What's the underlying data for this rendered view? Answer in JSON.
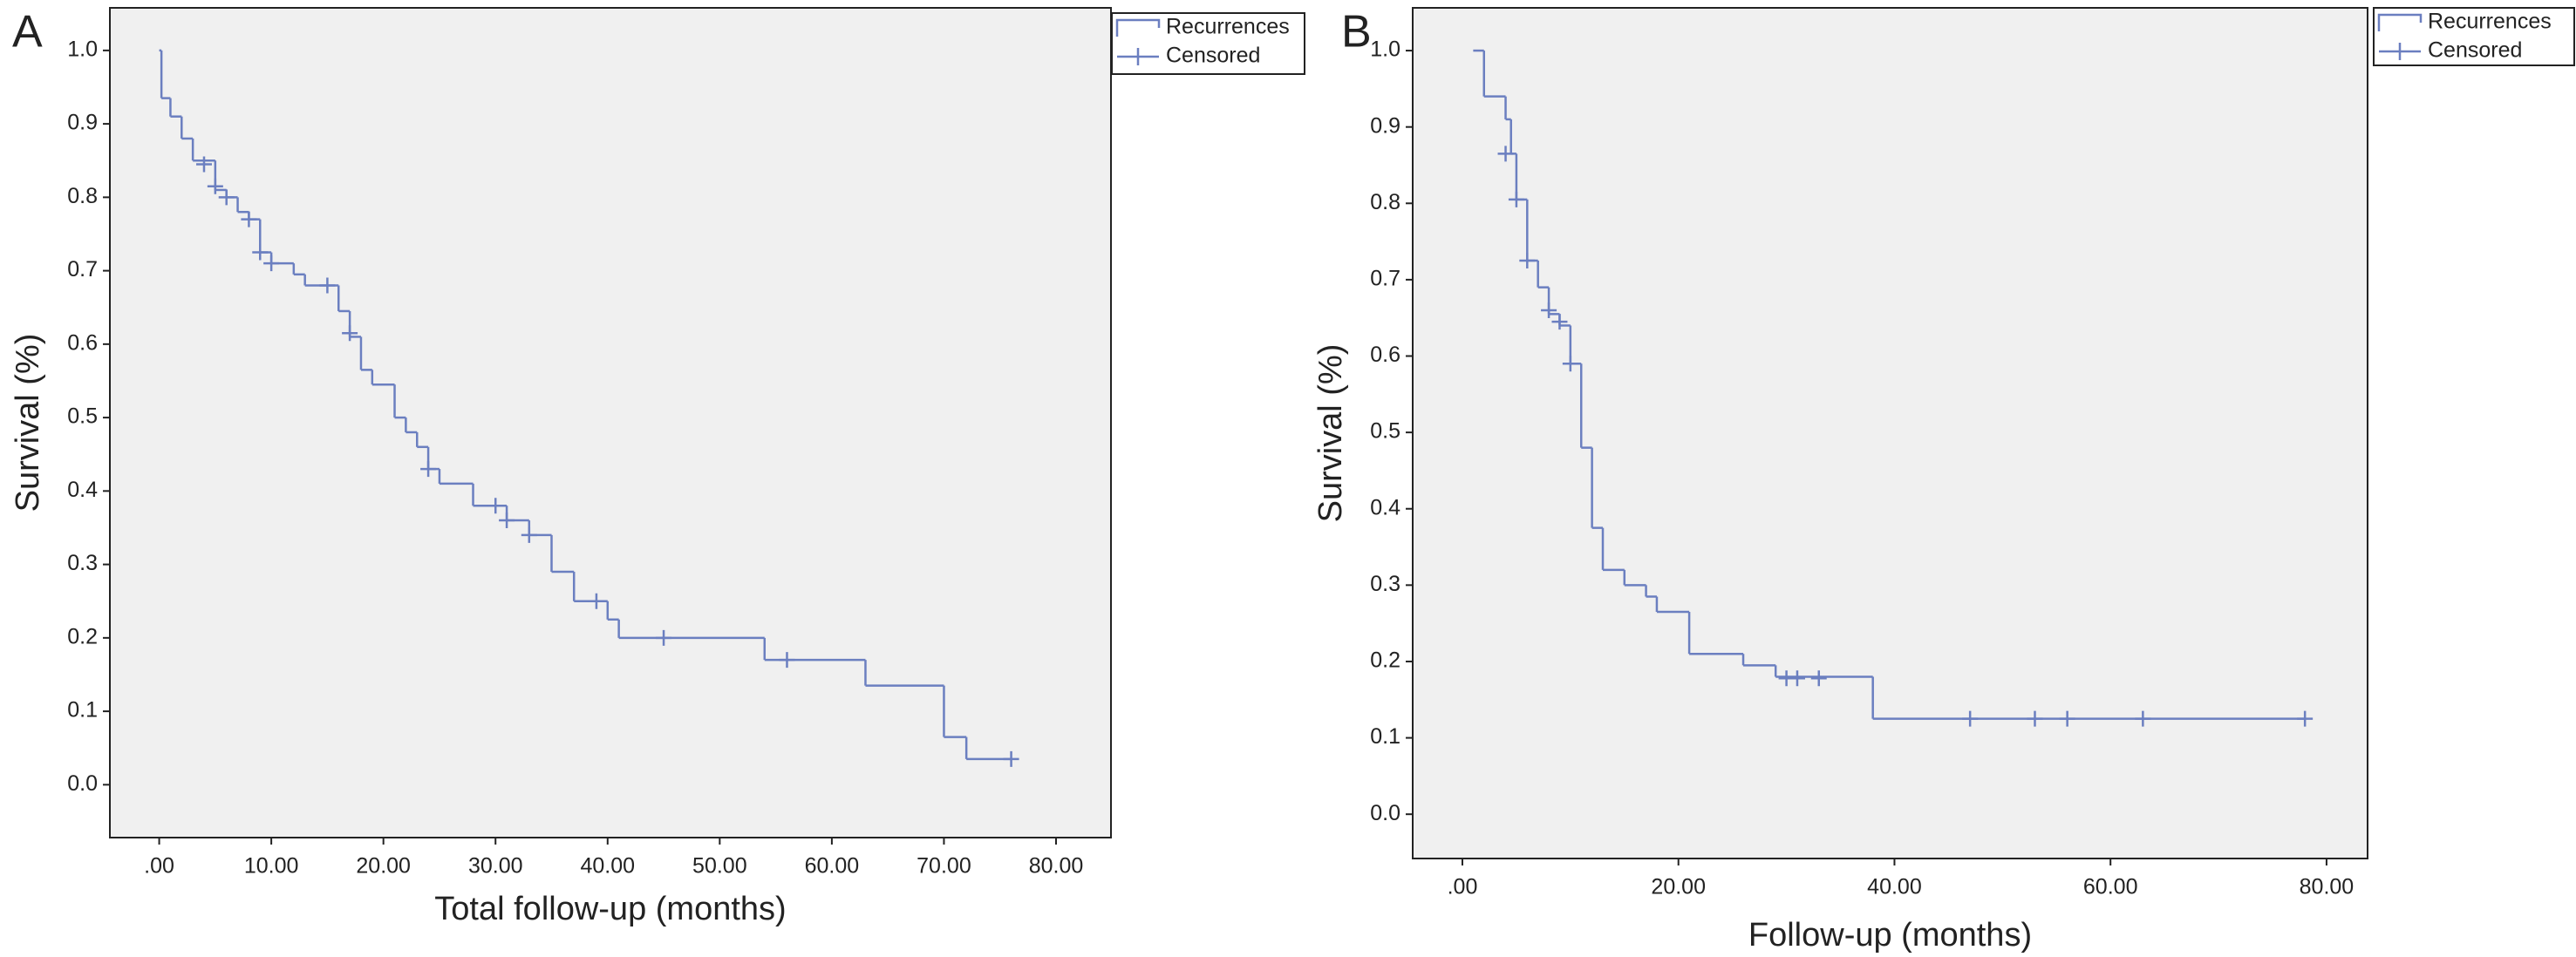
{
  "chart_data": [
    {
      "type": "step",
      "panel_label": "A",
      "ylabel": "Survival (%)",
      "xlabel": "Total follow-up (months)",
      "xlim": [
        -4.4,
        84.9
      ],
      "ylim": [
        -0.072,
        1.058
      ],
      "xticks": [
        {
          "value": 0,
          "label": ".00"
        },
        {
          "value": 10,
          "label": "10.00"
        },
        {
          "value": 20,
          "label": "20.00"
        },
        {
          "value": 30,
          "label": "30.00"
        },
        {
          "value": 40,
          "label": "40.00"
        },
        {
          "value": 50,
          "label": "50.00"
        },
        {
          "value": 60,
          "label": "60.00"
        },
        {
          "value": 70,
          "label": "70.00"
        },
        {
          "value": 80,
          "label": "80.00"
        }
      ],
      "yticks": [
        {
          "value": 0,
          "label": "0.0"
        },
        0.1,
        0.2,
        0.3,
        0.4,
        0.5,
        0.6,
        0.7,
        0.8,
        0.9,
        {
          "value": 1,
          "label": "1.0"
        }
      ],
      "legend": "upper-right-outside",
      "series": [
        {
          "name": "Recurrences",
          "color": "#6b7fc0",
          "marker": "step",
          "x": [
            0,
            0.2,
            1,
            2,
            3,
            5,
            6,
            7,
            8,
            9,
            10,
            12,
            13,
            16,
            17,
            18,
            19,
            21,
            22,
            23,
            24,
            25,
            28,
            31,
            33,
            35,
            37,
            40,
            41,
            54,
            63,
            70,
            72,
            76
          ],
          "values": [
            1.0,
            0.935,
            0.91,
            0.88,
            0.85,
            0.81,
            0.8,
            0.78,
            0.77,
            0.725,
            0.71,
            0.695,
            0.68,
            0.645,
            0.61,
            0.565,
            0.545,
            0.5,
            0.48,
            0.46,
            0.43,
            0.41,
            0.38,
            0.36,
            0.34,
            0.29,
            0.25,
            0.225,
            0.2,
            0.17,
            0.135,
            0.065,
            0.035,
            0.035
          ]
        },
        {
          "name": "Censored",
          "color": "#6b7fc0",
          "marker": "+",
          "x": [
            4,
            5,
            6,
            8,
            9,
            10,
            15,
            17,
            24,
            30,
            31,
            33,
            39,
            45,
            56,
            76
          ],
          "values": [
            0.845,
            0.815,
            0.8,
            0.77,
            0.725,
            0.71,
            0.68,
            0.615,
            0.43,
            0.38,
            0.36,
            0.34,
            0.25,
            0.2,
            0.17,
            0.035
          ]
        }
      ]
    },
    {
      "type": "step",
      "panel_label": "B",
      "ylabel": "Survival (%)",
      "xlabel": "Follow-up (months)",
      "xlim": [
        -4.6,
        83.8
      ],
      "ylim": [
        -0.058,
        1.056
      ],
      "xticks": [
        {
          "value": 0,
          "label": ".00"
        },
        {
          "value": 20,
          "label": "20.00"
        },
        {
          "value": 40,
          "label": "40.00"
        },
        {
          "value": 60,
          "label": "60.00"
        },
        {
          "value": 80,
          "label": "80.00"
        }
      ],
      "yticks": [
        {
          "value": 0,
          "label": "0.0"
        },
        0.1,
        0.2,
        0.3,
        0.4,
        0.5,
        0.6,
        0.7,
        0.8,
        0.9,
        {
          "value": 1,
          "label": "1.0"
        }
      ],
      "legend": "upper-right-outside",
      "series": [
        {
          "name": "Recurrences",
          "color": "#6b7fc0",
          "marker": "step",
          "x": [
            1,
            2,
            4,
            4.5,
            5,
            6,
            7,
            8,
            9,
            10,
            11,
            12,
            13,
            15,
            17,
            18,
            21,
            26,
            29,
            38,
            78
          ],
          "values": [
            1.0,
            0.94,
            0.91,
            0.865,
            0.805,
            0.725,
            0.69,
            0.655,
            0.64,
            0.59,
            0.48,
            0.375,
            0.32,
            0.3,
            0.285,
            0.265,
            0.21,
            0.195,
            0.18,
            0.125,
            0.125
          ]
        },
        {
          "name": "Censored",
          "color": "#6b7fc0",
          "marker": "+",
          "x": [
            4,
            5,
            6,
            8,
            9,
            10,
            30,
            31,
            33,
            47,
            53,
            56,
            63,
            78
          ],
          "values": [
            0.865,
            0.805,
            0.725,
            0.66,
            0.645,
            0.59,
            0.178,
            0.178,
            0.178,
            0.125,
            0.125,
            0.125,
            0.125,
            0.125
          ]
        }
      ]
    }
  ]
}
